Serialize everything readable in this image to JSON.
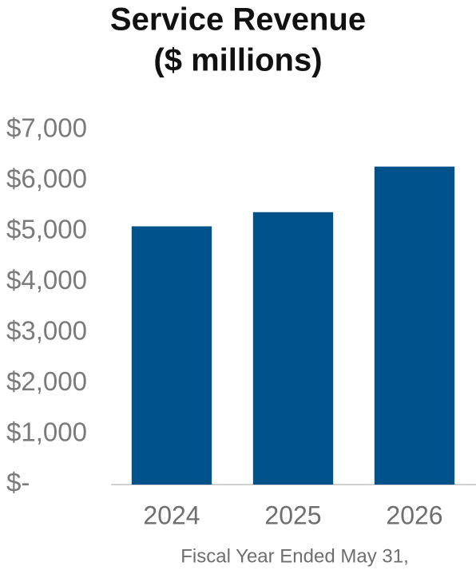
{
  "chart_data": {
    "type": "bar",
    "title": "Service Revenue",
    "subtitle": "($ millions)",
    "x_label": "Fiscal Year Ended May 31,",
    "categories": [
      "2024",
      "2025",
      "2026"
    ],
    "values": [
      5100,
      5380,
      6280
    ],
    "color": "#00528a",
    "ylim": [
      0,
      7000
    ],
    "yticks": [
      {
        "value": 0,
        "label": "$-"
      },
      {
        "value": 1000,
        "label": "$1,000"
      },
      {
        "value": 2000,
        "label": "$2,000"
      },
      {
        "value": 3000,
        "label": "$3,000"
      },
      {
        "value": 4000,
        "label": "$4,000"
      },
      {
        "value": 5000,
        "label": "$5,000"
      },
      {
        "value": 6000,
        "label": "$6,000"
      },
      {
        "value": 7000,
        "label": "$7,000"
      }
    ],
    "grid": false
  }
}
